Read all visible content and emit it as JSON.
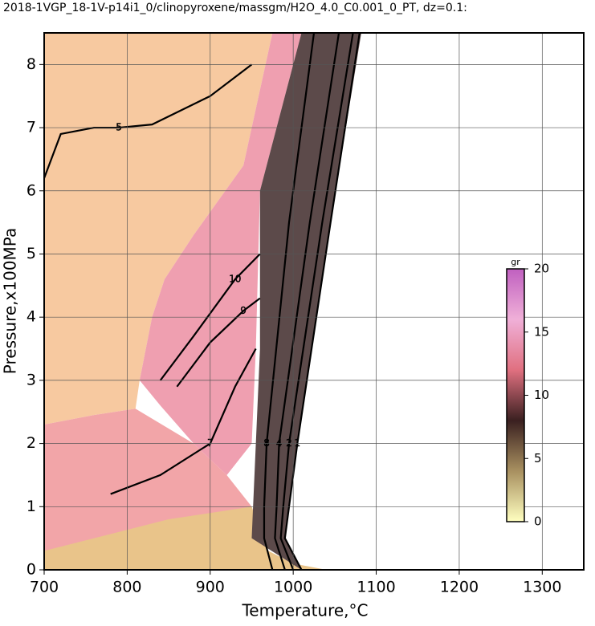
{
  "chart_data": {
    "type": "contour",
    "title": "2018-1VGP_18-1V-p14i1_0/clinopyroxene/massgm/H2O_4.0_C0.001_0_PT, dz=0.1:",
    "x_label": "Temperature,°C",
    "y_label": "Pressure,x100MPa",
    "xlim": [
      700,
      1350
    ],
    "ylim": [
      0,
      8.5
    ],
    "xticks": [
      700,
      800,
      900,
      1000,
      1100,
      1200,
      1300
    ],
    "yticks": [
      0,
      1,
      2,
      3,
      4,
      5,
      6,
      7,
      8
    ],
    "grid": true,
    "regions": [
      {
        "color": "#f7c9a0",
        "points": [
          [
            700,
            2.3
          ],
          [
            760,
            2.45
          ],
          [
            810,
            2.55
          ],
          [
            815,
            3.0
          ],
          [
            830,
            4.0
          ],
          [
            845,
            4.6
          ],
          [
            880,
            5.3
          ],
          [
            940,
            6.4
          ],
          [
            975,
            8.5
          ],
          [
            700,
            8.5
          ]
        ]
      },
      {
        "color": "#f2a5a8",
        "points": [
          [
            700,
            0.3
          ],
          [
            700,
            2.3
          ],
          [
            760,
            2.45
          ],
          [
            810,
            2.55
          ],
          [
            880,
            2.0
          ],
          [
            920,
            1.5
          ],
          [
            950,
            1.0
          ],
          [
            960,
            0.5
          ],
          [
            940,
            0.2
          ]
        ]
      },
      {
        "color": "#e9c48a",
        "points": [
          [
            700,
            0
          ],
          [
            700,
            0.3
          ],
          [
            850,
            0.8
          ],
          [
            950,
            1.0
          ],
          [
            970,
            0.3
          ],
          [
            1000,
            0.1
          ],
          [
            1040,
            0
          ]
        ]
      },
      {
        "color": "#ef9fb0",
        "points": [
          [
            815,
            3.0
          ],
          [
            830,
            4.0
          ],
          [
            845,
            4.6
          ],
          [
            880,
            5.3
          ],
          [
            940,
            6.4
          ],
          [
            975,
            8.5
          ],
          [
            1010,
            8.5
          ],
          [
            960,
            6.0
          ],
          [
            955,
            3.5
          ],
          [
            950,
            2.0
          ],
          [
            920,
            1.5
          ],
          [
            880,
            2.0
          ],
          [
            840,
            2.6
          ]
        ]
      },
      {
        "color": "#5c4a4a",
        "points": [
          [
            950,
            0.5
          ],
          [
            955,
            2.0
          ],
          [
            960,
            3.5
          ],
          [
            960,
            6.0
          ],
          [
            1010,
            8.5
          ],
          [
            1082,
            8.5
          ],
          [
            1045,
            5.5
          ],
          [
            1005,
            2.0
          ],
          [
            995,
            1.0
          ],
          [
            990,
            0.5
          ],
          [
            1010,
            0
          ]
        ]
      }
    ],
    "contours": [
      {
        "level": 1,
        "points": [
          [
            1010,
            0
          ],
          [
            990,
            0.5
          ],
          [
            995,
            1.0
          ],
          [
            1005,
            2.0
          ],
          [
            1045,
            5.5
          ],
          [
            1080,
            8.5
          ]
        ]
      },
      {
        "level": 2,
        "points": [
          [
            1000,
            0
          ],
          [
            985,
            0.5
          ],
          [
            988,
            1.0
          ],
          [
            995,
            2.0
          ],
          [
            1035,
            5.5
          ],
          [
            1072,
            8.5
          ]
        ]
      },
      {
        "level": 4,
        "points": [
          [
            990,
            0
          ],
          [
            978,
            0.5
          ],
          [
            980,
            1.0
          ],
          [
            983,
            2.0
          ],
          [
            1020,
            5.5
          ],
          [
            1055,
            8.5
          ]
        ]
      },
      {
        "level": 8,
        "points": [
          [
            975,
            0
          ],
          [
            965,
            0.5
          ],
          [
            965,
            1.0
          ],
          [
            968,
            2.0
          ],
          [
            995,
            5.5
          ],
          [
            1025,
            8.5
          ]
        ]
      },
      {
        "level": 5,
        "points": [
          [
            700,
            6.2
          ],
          [
            720,
            6.9
          ],
          [
            760,
            7.0
          ],
          [
            790,
            7.0
          ],
          [
            830,
            7.05
          ],
          [
            900,
            7.5
          ],
          [
            950,
            8.0
          ]
        ]
      },
      {
        "level": 10,
        "points": [
          [
            840,
            3.0
          ],
          [
            880,
            3.7
          ],
          [
            930,
            4.6
          ],
          [
            960,
            5.0
          ]
        ]
      },
      {
        "level": 9,
        "points": [
          [
            860,
            2.9
          ],
          [
            900,
            3.6
          ],
          [
            940,
            4.1
          ],
          [
            960,
            4.3
          ]
        ]
      },
      {
        "level": 7,
        "points": [
          [
            780,
            1.2
          ],
          [
            840,
            1.5
          ],
          [
            900,
            2.0
          ],
          [
            930,
            2.9
          ],
          [
            955,
            3.5
          ]
        ]
      }
    ],
    "colorbar": {
      "label": "gr",
      "lim": [
        0,
        20
      ],
      "ticks": [
        0,
        5,
        10,
        15,
        20
      ],
      "colors": [
        "#ffffc0",
        "#a89060",
        "#3a2020",
        "#e07080",
        "#f0b0d8",
        "#c060c0"
      ]
    }
  }
}
